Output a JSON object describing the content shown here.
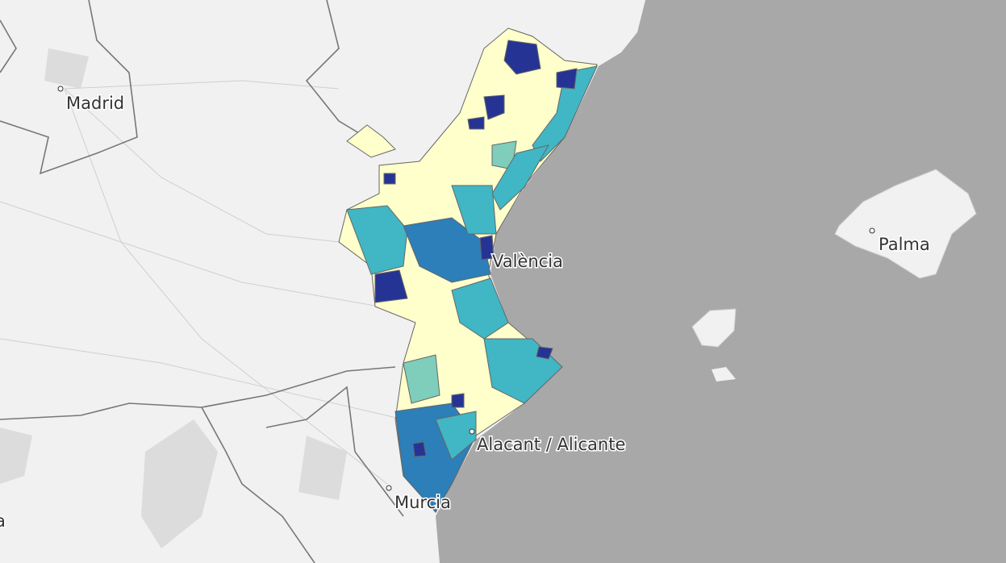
{
  "map": {
    "labels": [
      "Madrid",
      "València",
      "Palma",
      "Alacant / Alicante",
      "Murcia",
      "a"
    ]
  }
}
